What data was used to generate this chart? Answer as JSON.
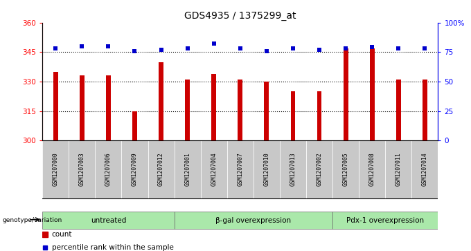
{
  "title": "GDS4935 / 1375299_at",
  "samples": [
    "GSM1207000",
    "GSM1207003",
    "GSM1207006",
    "GSM1207009",
    "GSM1207012",
    "GSM1207001",
    "GSM1207004",
    "GSM1207007",
    "GSM1207010",
    "GSM1207013",
    "GSM1207002",
    "GSM1207005",
    "GSM1207008",
    "GSM1207011",
    "GSM1207014"
  ],
  "counts": [
    335,
    333,
    333,
    315,
    340,
    331,
    334,
    331,
    330,
    325,
    325,
    347,
    347,
    331,
    331
  ],
  "percentile_ranks": [
    78,
    80,
    80,
    76,
    77,
    78,
    82,
    78,
    76,
    78,
    77,
    78,
    79,
    78,
    78
  ],
  "groups": [
    {
      "label": "untreated",
      "start": 0,
      "end": 5
    },
    {
      "label": "β-gal overexpression",
      "start": 5,
      "end": 11
    },
    {
      "label": "Pdx-1 overexpression",
      "start": 11,
      "end": 15
    }
  ],
  "ylim_left": [
    300,
    360
  ],
  "ylim_right": [
    0,
    100
  ],
  "yticks_left": [
    300,
    315,
    330,
    345,
    360
  ],
  "yticks_right": [
    0,
    25,
    50,
    75,
    100
  ],
  "yticklabels_right": [
    "0",
    "25",
    "50",
    "75",
    "100%"
  ],
  "bar_color": "#cc0000",
  "dot_color": "#0000cc",
  "group_bg_color": "#aae8aa",
  "sample_bg_color": "#c8c8c8",
  "legend_count_label": "count",
  "legend_percentile_label": "percentile rank within the sample",
  "genotype_label": "genotype/variation",
  "bar_width": 0.18
}
